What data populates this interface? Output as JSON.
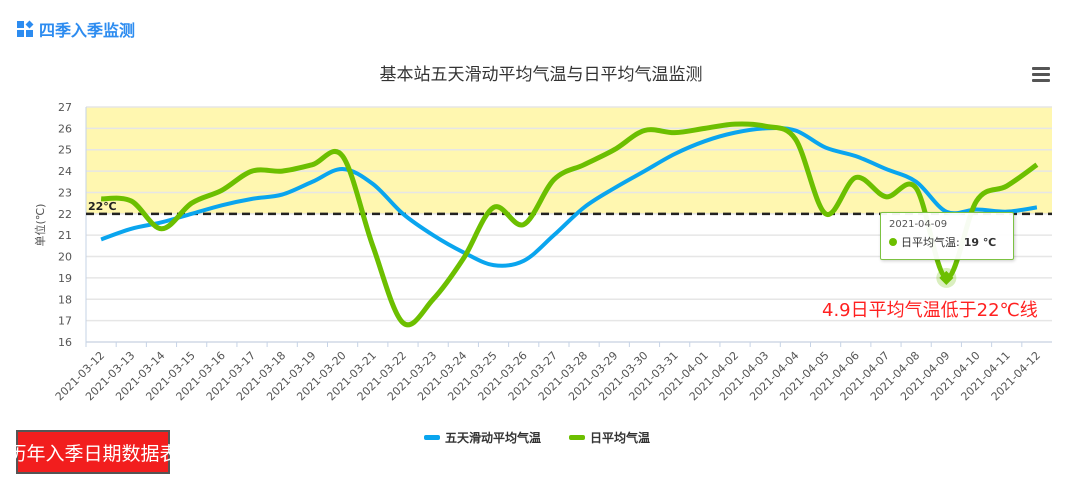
{
  "header": {
    "title": "四季入季监测",
    "icon": "dashboard-grid-icon"
  },
  "menu": {
    "icon": "hamburger-menu-icon"
  },
  "button": {
    "label": "历年入季日期数据表"
  },
  "tooltip": {
    "date": "2021-04-09",
    "series": "日平均气温",
    "sep": ": ",
    "value": "19 ℃"
  },
  "annotation": "4.9日平均气温低于22℃线",
  "chart_data": {
    "type": "line",
    "title": "基本站五天滑动平均气温与日平均气温监测",
    "ylabel": "单位(℃)",
    "xlabel": "",
    "ylim": [
      16,
      27
    ],
    "yticks": [
      16,
      17,
      18,
      19,
      20,
      21,
      22,
      23,
      24,
      25,
      26,
      27
    ],
    "grid": true,
    "legend_position": "bottom",
    "threshold": {
      "value": 22,
      "label": "22℃",
      "band": [
        22,
        27
      ],
      "band_color": "#fff7b0"
    },
    "categories": [
      "2021-03-12",
      "2021-03-13",
      "2021-03-14",
      "2021-03-15",
      "2021-03-16",
      "2021-03-17",
      "2021-03-18",
      "2021-03-19",
      "2021-03-20",
      "2021-03-21",
      "2021-03-22",
      "2021-03-23",
      "2021-03-24",
      "2021-03-25",
      "2021-03-26",
      "2021-03-27",
      "2021-03-28",
      "2021-03-29",
      "2021-03-30",
      "2021-03-31",
      "2021-04-01",
      "2021-04-02",
      "2021-04-03",
      "2021-04-04",
      "2021-04-05",
      "2021-04-06",
      "2021-04-07",
      "2021-04-08",
      "2021-04-09",
      "2021-04-10",
      "2021-04-11",
      "2021-04-12"
    ],
    "series": [
      {
        "name": "五天滑动平均气温",
        "color": "#0aa5ee",
        "values": [
          20.8,
          21.3,
          21.6,
          22.0,
          22.4,
          22.7,
          22.9,
          23.5,
          24.1,
          23.4,
          22.0,
          21.0,
          20.2,
          19.6,
          19.8,
          21.0,
          22.3,
          23.2,
          24.0,
          24.8,
          25.4,
          25.8,
          26.0,
          25.9,
          25.1,
          24.7,
          24.1,
          23.5,
          22.1,
          22.2,
          22.1,
          22.3
        ]
      },
      {
        "name": "日平均气温",
        "color": "#6cbf00",
        "values": [
          22.7,
          22.6,
          21.3,
          22.5,
          23.1,
          24.0,
          24.0,
          24.3,
          24.7,
          20.5,
          16.9,
          18.0,
          19.9,
          22.3,
          21.5,
          23.6,
          24.3,
          25.0,
          25.9,
          25.8,
          26.0,
          26.2,
          26.1,
          25.5,
          22.0,
          23.7,
          22.8,
          23.2,
          19.0,
          22.6,
          23.3,
          24.3
        ]
      }
    ],
    "highlight": {
      "series": "日平均气温",
      "category": "2021-04-09",
      "value": 19
    }
  }
}
